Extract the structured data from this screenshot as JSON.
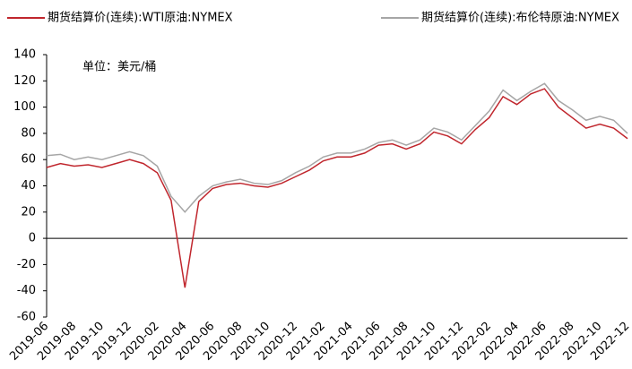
{
  "chart_data": {
    "type": "line",
    "annotation": "单位：美元/桶",
    "x": [
      "2019-06",
      "2019-07",
      "2019-08",
      "2019-09",
      "2019-10",
      "2019-11",
      "2019-12",
      "2020-01",
      "2020-02",
      "2020-03",
      "2020-04",
      "2020-05",
      "2020-06",
      "2020-07",
      "2020-08",
      "2020-09",
      "2020-10",
      "2020-11",
      "2020-12",
      "2021-01",
      "2021-02",
      "2021-03",
      "2021-04",
      "2021-05",
      "2021-06",
      "2021-07",
      "2021-08",
      "2021-09",
      "2021-10",
      "2021-11",
      "2021-12",
      "2022-01",
      "2022-02",
      "2022-03",
      "2022-04",
      "2022-05",
      "2022-06",
      "2022-07",
      "2022-08",
      "2022-09",
      "2022-10",
      "2022-11",
      "2022-12"
    ],
    "xticks": [
      "2019-06",
      "2019-08",
      "2019-10",
      "2019-12",
      "2020-02",
      "2020-04",
      "2020-06",
      "2020-08",
      "2020-10",
      "2020-12",
      "2021-02",
      "2021-04",
      "2021-06",
      "2021-08",
      "2021-10",
      "2021-12",
      "2022-02",
      "2022-04",
      "2022-06",
      "2022-08",
      "2022-10",
      "2022-12"
    ],
    "series": [
      {
        "name": "期货结算价(连续):WTI原油:NYMEX",
        "color": "#c0262d",
        "values": [
          54,
          57,
          55,
          56,
          54,
          57,
          60,
          57,
          50,
          29,
          -37.6,
          28,
          38,
          41,
          42,
          40,
          39,
          42,
          47,
          52,
          59,
          62,
          62,
          65,
          71,
          72,
          68,
          72,
          81,
          78,
          72,
          83,
          92,
          108,
          102,
          110,
          114,
          100,
          92,
          84,
          87,
          84,
          76
        ]
      },
      {
        "name": "期货结算价(连续):布伦特原油:NYMEX",
        "color": "#a6a6a6",
        "values": [
          63,
          64,
          60,
          62,
          60,
          63,
          66,
          63,
          55,
          32,
          20,
          32,
          40,
          43,
          45,
          42,
          41,
          44,
          50,
          55,
          62,
          65,
          65,
          68,
          73,
          75,
          71,
          75,
          84,
          81,
          75,
          86,
          97,
          113,
          105,
          112,
          118,
          105,
          98,
          90,
          93,
          90,
          80
        ]
      }
    ],
    "ylim": [
      -60,
      140
    ],
    "yticks": [
      -60,
      -40,
      -20,
      0,
      20,
      40,
      60,
      80,
      100,
      120,
      140
    ],
    "grid": false
  }
}
